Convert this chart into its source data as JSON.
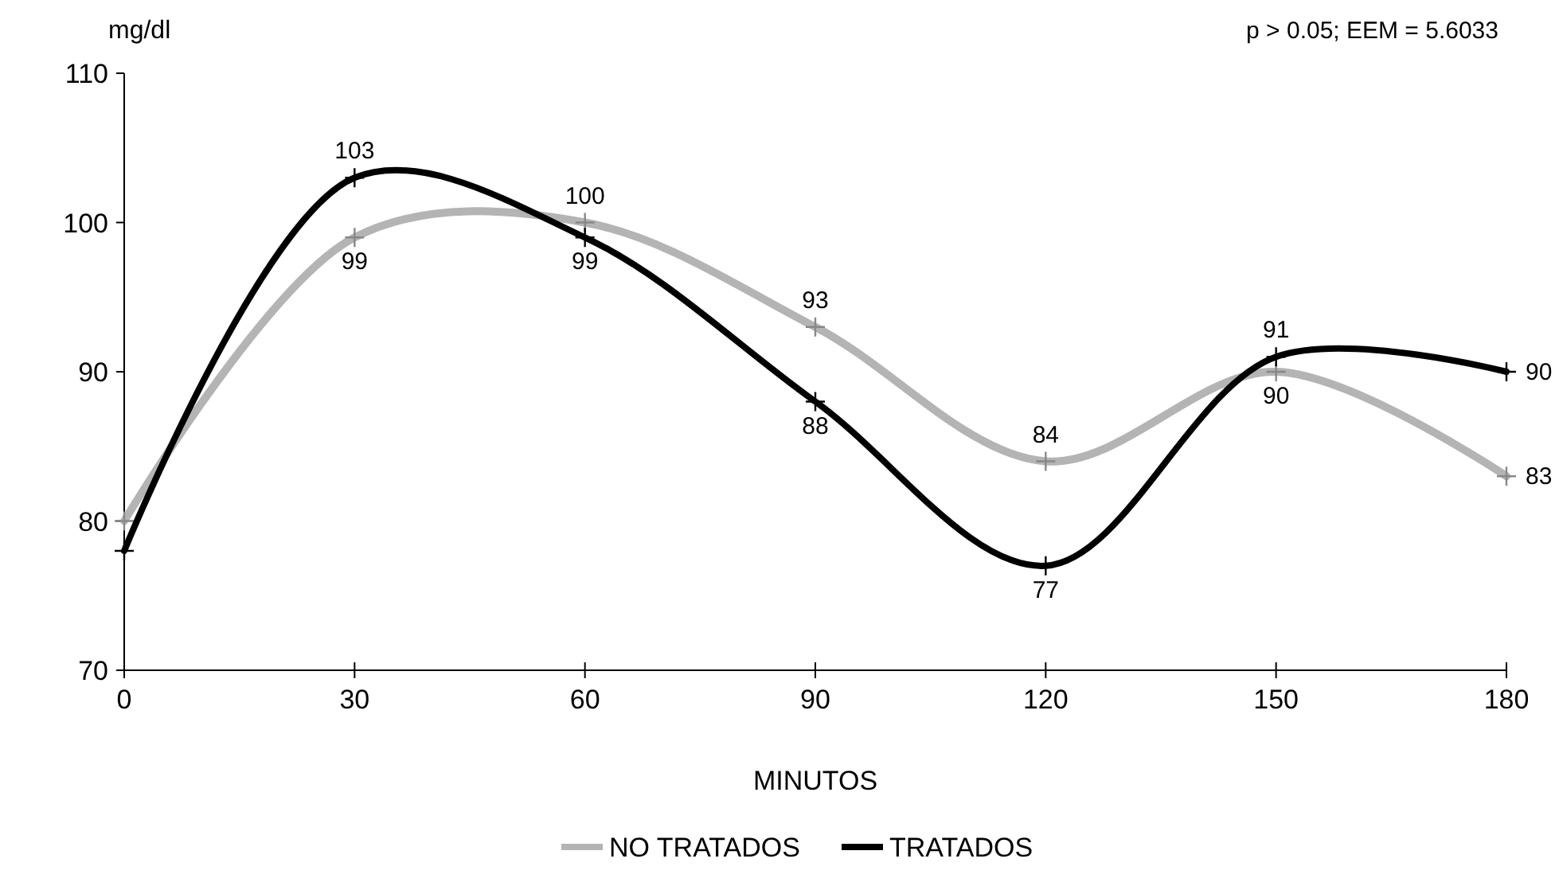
{
  "chart_data": {
    "type": "line",
    "xlabel": "MINUTOS",
    "ylabel": "mg/dl",
    "annotations": [
      "p > 0.05; EEM = 5.6033"
    ],
    "x": [
      0,
      30,
      60,
      90,
      120,
      150,
      180
    ],
    "series": [
      {
        "name": "NO TRATADOS",
        "color": "#b4b4b4",
        "values": [
          80,
          99,
          100,
          93,
          84,
          90,
          83
        ],
        "value_labels": [
          null,
          "99",
          "100",
          "93",
          "84",
          "90",
          "83"
        ]
      },
      {
        "name": "TRATADOS",
        "color": "#000000",
        "values": [
          78,
          103,
          99,
          88,
          77,
          91,
          90
        ],
        "value_labels": [
          null,
          "103",
          "99",
          "88",
          "77",
          "91",
          "90"
        ]
      }
    ],
    "xlim": [
      0,
      180
    ],
    "xticks": [
      0,
      30,
      60,
      90,
      120,
      150,
      180
    ],
    "ylim": [
      70,
      110
    ],
    "yticks": [
      70,
      80,
      90,
      100,
      110
    ],
    "grid": false,
    "legend": "bottom",
    "marker": "cross",
    "line_style": "solid"
  }
}
